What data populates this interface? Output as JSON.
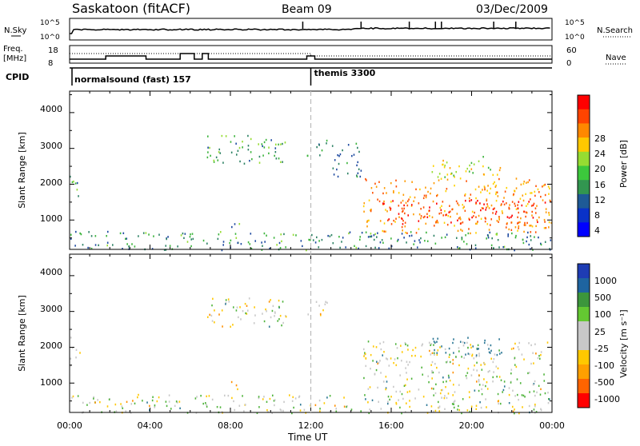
{
  "header": {
    "station": "Saskatoon (fitACF)",
    "beam": "Beam 09",
    "date": "03/Dec/2009"
  },
  "noise_panel": {
    "left_label": "N.Sky",
    "right_label": "N.Search",
    "left_ticks": [
      "10^5",
      "10^0"
    ],
    "right_ticks": [
      "10^5",
      "10^0"
    ]
  },
  "freq_panel": {
    "left_label_line1": "Freq.",
    "left_label_line2": "[MHz]",
    "right_label": "Nave",
    "left_ticks": [
      "18",
      "8"
    ],
    "right_ticks": [
      "60",
      "0"
    ]
  },
  "cpid_panel": {
    "label": "CPID",
    "programs": [
      {
        "name": "normalsound (fast) 157",
        "start_hour": 0
      },
      {
        "name": "themis 3300",
        "start_hour": 12
      }
    ]
  },
  "power_panel": {
    "ylabel": "Slant Range [km]",
    "yticks": [
      "4000",
      "3000",
      "2000",
      "1000"
    ],
    "colorbar": {
      "label": "Power [dB]",
      "ticks": [
        "28",
        "24",
        "20",
        "16",
        "12",
        "8",
        "4"
      ],
      "colors": [
        "#ff0000",
        "#ff4400",
        "#ff8800",
        "#ffc800",
        "#96dc32",
        "#3cc83c",
        "#329650",
        "#1e5a96",
        "#0a32c8",
        "#0000ff"
      ]
    }
  },
  "velocity_panel": {
    "ylabel": "Slant Range [km]",
    "yticks": [
      "4000",
      "3000",
      "2000",
      "1000"
    ],
    "colorbar": {
      "label": "Velocity [m s⁻¹]",
      "ticks": [
        "1000",
        "500",
        "100",
        "25",
        "-25",
        "-100",
        "-500",
        "-1000"
      ],
      "colors": [
        "#1e3cb4",
        "#1e64a0",
        "#3c963c",
        "#64c832",
        "#c8c8c8",
        "#c8c8c8",
        "#ffc800",
        "#ffa000",
        "#ff6400",
        "#ff0000"
      ]
    }
  },
  "xaxis": {
    "label": "Time UT",
    "ticks": [
      "00:00",
      "04:00",
      "08:00",
      "12:00",
      "16:00",
      "20:00",
      "00:00"
    ]
  },
  "chart_data": {
    "type": "heatmap",
    "title": "Saskatoon (fitACF) Beam 09 03/Dec/2009",
    "xlabel": "Time UT",
    "ylabel": "Slant Range [km]",
    "xlim_hours": [
      0,
      24
    ],
    "ylim_km": [
      180,
      4600
    ],
    "program_change_hour": 12,
    "power_regions": [
      {
        "t": [
          0.0,
          0.5
        ],
        "r": [
          1500,
          2300
        ],
        "db": 10
      },
      {
        "t": [
          0.0,
          24.0
        ],
        "r": [
          180,
          700
        ],
        "db": 8
      },
      {
        "t": [
          6.8,
          10.8
        ],
        "r": [
          2600,
          3400
        ],
        "db": 10
      },
      {
        "t": [
          8.0,
          8.5
        ],
        "r": [
          800,
          1100
        ],
        "db": 10
      },
      {
        "t": [
          11.8,
          12.8
        ],
        "r": [
          2800,
          3300
        ],
        "db": 8
      },
      {
        "t": [
          13.0,
          14.5
        ],
        "r": [
          2200,
          3200
        ],
        "db": 6
      },
      {
        "t": [
          14.6,
          24.0
        ],
        "r": [
          650,
          2200
        ],
        "db": 20
      },
      {
        "t": [
          15.2,
          24.0
        ],
        "r": [
          900,
          1600
        ],
        "db": 26
      },
      {
        "t": [
          18.0,
          21.5
        ],
        "r": [
          2200,
          2800
        ],
        "db": 14
      }
    ],
    "velocity_regions": [
      {
        "t": [
          0.0,
          0.5
        ],
        "r": [
          1500,
          2300
        ],
        "v": 0
      },
      {
        "t": [
          0.0,
          24.0
        ],
        "r": [
          180,
          700
        ],
        "v": 0
      },
      {
        "t": [
          6.8,
          10.8
        ],
        "r": [
          2600,
          3400
        ],
        "v": 0
      },
      {
        "t": [
          8.0,
          8.5
        ],
        "r": [
          800,
          1100
        ],
        "v": -400
      },
      {
        "t": [
          11.8,
          12.8
        ],
        "r": [
          2800,
          3300
        ],
        "v": 0
      },
      {
        "t": [
          14.6,
          24.0
        ],
        "r": [
          700,
          2200
        ],
        "v": 0
      },
      {
        "t": [
          18.0,
          21.5
        ],
        "r": [
          1800,
          2300
        ],
        "v": 300
      }
    ],
    "nave_change_hour": 12
  }
}
